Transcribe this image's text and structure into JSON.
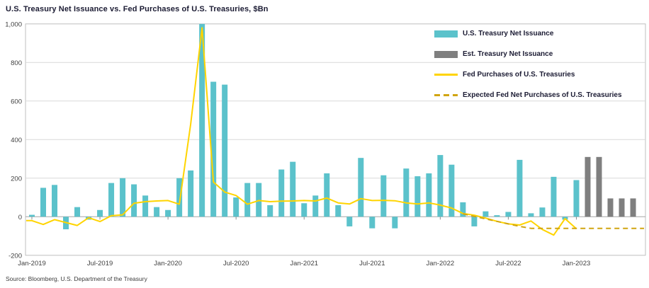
{
  "title": "U.S. Treasury Net Issuance vs. Fed Purchases of U.S. Treasuries, $Bn",
  "source": "Source: Bloomberg, U.S. Department of the Treasury",
  "legend": {
    "position": "top-right",
    "items": [
      {
        "label": "U.S. Treasury Net Issuance",
        "swatch": "bar",
        "color": "#5BC2CB"
      },
      {
        "label": "Est. Treasury Net Issuance",
        "swatch": "bar",
        "color": "#7F7F7F"
      },
      {
        "label": "Fed Purchases of U.S. Treasuries",
        "swatch": "line",
        "color": "#FFD400"
      },
      {
        "label": "Expected Fed Net Purchases of U.S. Treasuries",
        "swatch": "dashed-line",
        "color": "#D1A511"
      }
    ]
  },
  "chart_data": {
    "type": "bar",
    "title": "U.S. Treasury Net Issuance vs. Fed Purchases of U.S. Treasuries, $Bn",
    "xlabel": "",
    "ylabel": "$Bn",
    "ylim": [
      -200,
      1000
    ],
    "grid": true,
    "legend_position": "top-right",
    "categories": [
      "Jan-2019",
      "Feb-2019",
      "Mar-2019",
      "Apr-2019",
      "May-2019",
      "Jun-2019",
      "Jul-2019",
      "Aug-2019",
      "Sep-2019",
      "Oct-2019",
      "Nov-2019",
      "Dec-2019",
      "Jan-2020",
      "Feb-2020",
      "Mar-2020",
      "Apr-2020",
      "May-2020",
      "Jun-2020",
      "Jul-2020",
      "Aug-2020",
      "Sep-2020",
      "Oct-2020",
      "Nov-2020",
      "Dec-2020",
      "Jan-2021",
      "Feb-2021",
      "Mar-2021",
      "Apr-2021",
      "May-2021",
      "Jun-2021",
      "Jul-2021",
      "Aug-2021",
      "Sep-2021",
      "Oct-2021",
      "Nov-2021",
      "Dec-2021",
      "Jan-2022",
      "Feb-2022",
      "Mar-2022",
      "Apr-2022",
      "May-2022",
      "Jun-2022",
      "Jul-2022",
      "Aug-2022",
      "Sep-2022",
      "Oct-2022",
      "Nov-2022",
      "Dec-2022",
      "Jan-2023",
      "Feb-2023",
      "Mar-2023",
      "Apr-2023",
      "May-2023",
      "Jun-2023"
    ],
    "y_ticks": [
      {
        "label": "1,000",
        "value": 1000
      },
      {
        "label": "800",
        "value": 800
      },
      {
        "label": "600",
        "value": 600
      },
      {
        "label": "400",
        "value": 400
      },
      {
        "label": "200",
        "value": 200
      },
      {
        "label": "0",
        "value": 0
      },
      {
        "label": "-200",
        "value": -200
      }
    ],
    "x_ticks": [
      {
        "index": 0,
        "label": "Jan-2019"
      },
      {
        "index": 6,
        "label": "Jul-2019"
      },
      {
        "index": 12,
        "label": "Jan-2020"
      },
      {
        "index": 18,
        "label": "Jul-2020"
      },
      {
        "index": 24,
        "label": "Jan-2021"
      },
      {
        "index": 30,
        "label": "Jul-2021"
      },
      {
        "index": 36,
        "label": "Jan-2022"
      },
      {
        "index": 42,
        "label": "Jul-2022"
      },
      {
        "index": 48,
        "label": "Jan-2023"
      }
    ],
    "series": [
      {
        "name": "U.S. Treasury Net Issuance",
        "kind": "bar",
        "color": "#5BC2CB",
        "values": [
          10,
          150,
          165,
          -65,
          50,
          -15,
          35,
          175,
          200,
          168,
          110,
          50,
          35,
          200,
          240,
          1000,
          700,
          685,
          100,
          175,
          175,
          60,
          245,
          285,
          70,
          110,
          225,
          60,
          -50,
          305,
          -60,
          215,
          -60,
          250,
          210,
          225,
          320,
          270,
          75,
          -50,
          28,
          8,
          25,
          295,
          18,
          48,
          207,
          -15,
          190,
          null,
          null,
          null,
          null,
          null
        ]
      },
      {
        "name": "Est. Treasury Net Issuance",
        "kind": "bar",
        "color": "#7F7F7F",
        "values": [
          null,
          null,
          null,
          null,
          null,
          null,
          null,
          null,
          null,
          null,
          null,
          null,
          null,
          null,
          null,
          null,
          null,
          null,
          null,
          null,
          null,
          null,
          null,
          null,
          null,
          null,
          null,
          null,
          null,
          null,
          null,
          null,
          null,
          null,
          null,
          null,
          null,
          null,
          null,
          null,
          null,
          null,
          null,
          null,
          null,
          null,
          null,
          null,
          null,
          310,
          310,
          95,
          95,
          95
        ]
      },
      {
        "name": "Fed Purchases of U.S. Treasuries",
        "kind": "line",
        "color": "#FFD400",
        "values": [
          -20,
          -40,
          -15,
          -30,
          -45,
          -5,
          -25,
          5,
          10,
          70,
          78,
          82,
          84,
          65,
          480,
          980,
          180,
          128,
          110,
          65,
          84,
          78,
          81,
          82,
          84,
          82,
          97,
          72,
          66,
          94,
          84,
          85,
          83,
          72,
          66,
          72,
          60,
          45,
          17,
          8,
          -7,
          -24,
          -37,
          -43,
          -22,
          -66,
          -95,
          -10,
          -62,
          null,
          null,
          null,
          null,
          null
        ]
      },
      {
        "name": "Expected Fed Net Purchases of U.S. Treasuries",
        "kind": "dashed-line",
        "color": "#D1A511",
        "values": [
          null,
          null,
          null,
          null,
          null,
          null,
          null,
          null,
          null,
          null,
          null,
          null,
          null,
          null,
          null,
          null,
          null,
          null,
          null,
          null,
          null,
          null,
          null,
          null,
          null,
          null,
          null,
          null,
          null,
          null,
          null,
          null,
          null,
          null,
          null,
          null,
          null,
          null,
          15,
          2,
          -11,
          -24,
          -37,
          -50,
          -60,
          -60,
          -60,
          -60,
          -60,
          -60,
          -60,
          -60,
          -60,
          -60
        ]
      }
    ]
  }
}
